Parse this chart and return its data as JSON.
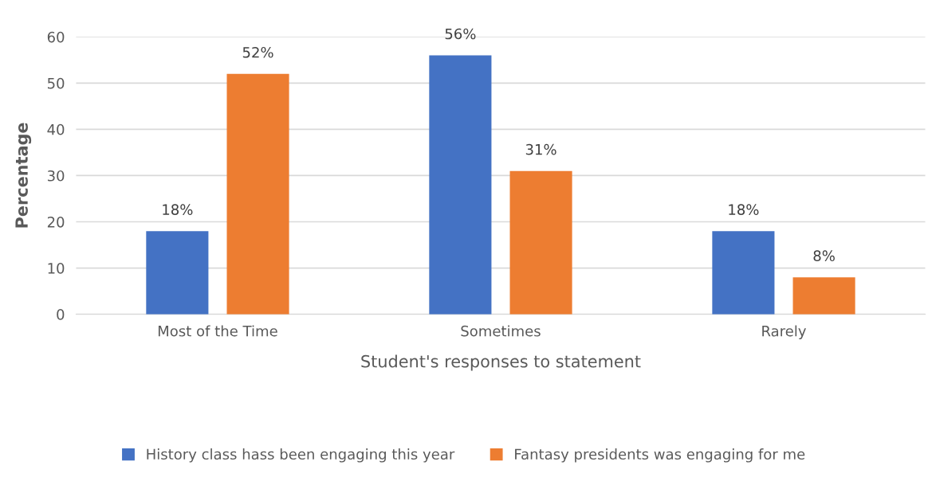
{
  "chart_data": {
    "type": "bar",
    "xlabel": "Student's responses to statement",
    "ylabel": "Percentage",
    "categories": [
      "Most of the Time",
      "Sometimes",
      "Rarely"
    ],
    "series": [
      {
        "name": "History class hass been engaging this year",
        "color": "#4472c4",
        "values": [
          18,
          56,
          18
        ],
        "value_labels": [
          "18%",
          "56%",
          "18%"
        ]
      },
      {
        "name": "Fantasy presidents was engaging for me",
        "color": "#ed7d31",
        "values": [
          52,
          31,
          8
        ],
        "value_labels": [
          "52%",
          "31%",
          "8%"
        ]
      }
    ],
    "ylim": [
      0,
      60
    ],
    "yticks": [
      0,
      10,
      20,
      30,
      40,
      50,
      60
    ],
    "grid": "y",
    "legend": "bottom"
  }
}
